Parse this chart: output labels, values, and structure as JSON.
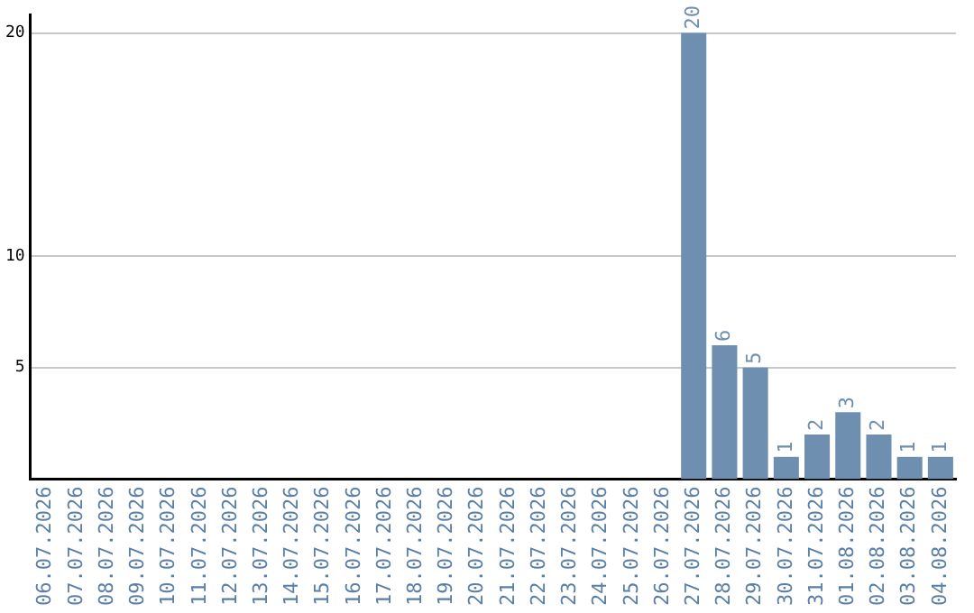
{
  "chart_data": {
    "type": "bar",
    "categories": [
      "06.07.2026",
      "07.07.2026",
      "08.07.2026",
      "09.07.2026",
      "10.07.2026",
      "11.07.2026",
      "12.07.2026",
      "13.07.2026",
      "14.07.2026",
      "15.07.2026",
      "16.07.2026",
      "17.07.2026",
      "18.07.2026",
      "19.07.2026",
      "20.07.2026",
      "21.07.2026",
      "22.07.2026",
      "23.07.2026",
      "24.07.2026",
      "25.07.2026",
      "26.07.2026",
      "27.07.2026",
      "28.07.2026",
      "29.07.2026",
      "30.07.2026",
      "31.07.2026",
      "01.08.2026",
      "02.08.2026",
      "03.08.2026",
      "04.08.2026"
    ],
    "values": [
      0,
      0,
      0,
      0,
      0,
      0,
      0,
      0,
      0,
      0,
      0,
      0,
      0,
      0,
      0,
      0,
      0,
      0,
      0,
      0,
      0,
      20,
      6,
      5,
      1,
      2,
      3,
      2,
      1,
      1
    ],
    "value_labels": [
      null,
      null,
      null,
      null,
      null,
      null,
      null,
      null,
      null,
      null,
      null,
      null,
      null,
      null,
      null,
      null,
      null,
      null,
      null,
      null,
      null,
      "20",
      "6",
      "5",
      "1",
      "2",
      "3",
      "2",
      "1",
      "1"
    ],
    "color": "#6e8fb0",
    "ylim": [
      0,
      20.8
    ],
    "yticks": [
      5,
      10,
      20
    ],
    "grid": "y",
    "legend": false
  }
}
